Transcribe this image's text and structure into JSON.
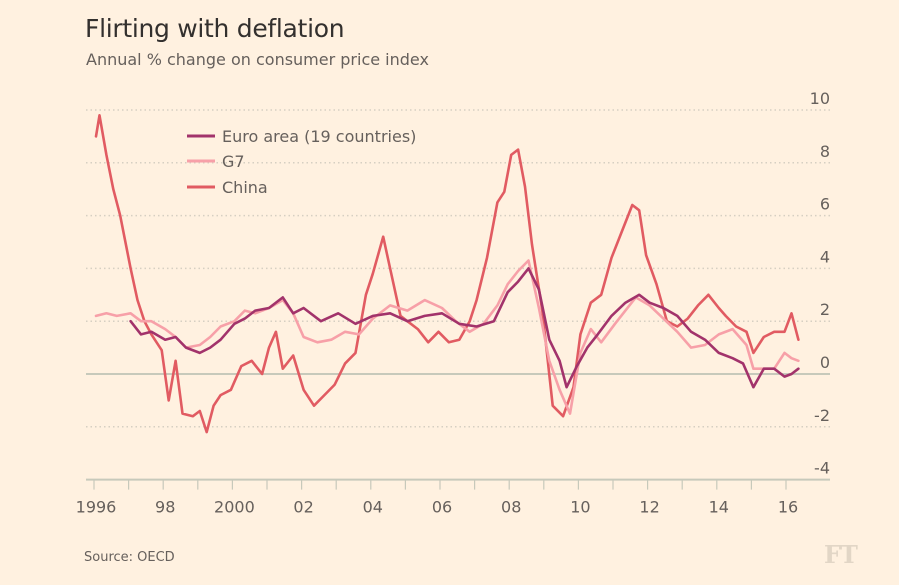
{
  "header": {
    "title": "Flirting with deflation",
    "subtitle": "Annual % change on consumer price index"
  },
  "footer": {
    "source": "Source: OECD",
    "logo": "FT"
  },
  "colors": {
    "background": "#fff1e0",
    "euro": "#a2336b",
    "g7": "#f7a0a8",
    "china": "#e15b62",
    "zero_line": "#c7c9bb",
    "grid": "#d6cfc2"
  },
  "chart_data": {
    "type": "line",
    "title": "Flirting with deflation",
    "subtitle": "Annual % change on consumer price index",
    "xlabel": "",
    "ylabel": "",
    "ylim": [
      -4,
      10
    ],
    "xlim": [
      1995.9,
      2016.4
    ],
    "y_ticks": [
      10,
      8,
      6,
      4,
      2,
      0,
      -2,
      -4
    ],
    "y_tick_labels": [
      "10",
      "8",
      "6",
      "4",
      "2",
      "0",
      "-2",
      "-4"
    ],
    "x_ticks": [
      1996,
      1998,
      2000,
      2002,
      2004,
      2006,
      2008,
      2010,
      2012,
      2014,
      2016
    ],
    "x_tick_labels": [
      "1996",
      "98",
      "2000",
      "02",
      "04",
      "06",
      "08",
      "10",
      "12",
      "14",
      "16"
    ],
    "grid": true,
    "legend": "top-left",
    "series": [
      {
        "name": "Euro area (19 countries)",
        "color_key": "euro",
        "x": [
          1997.0,
          1997.3,
          1997.6,
          1998.0,
          1998.3,
          1998.6,
          1999.0,
          1999.3,
          1999.6,
          2000.0,
          2000.3,
          2000.6,
          2001.0,
          2001.4,
          2001.7,
          2002.0,
          2002.5,
          2003.0,
          2003.5,
          2004.0,
          2004.5,
          2005.0,
          2005.5,
          2006.0,
          2006.5,
          2007.0,
          2007.5,
          2007.9,
          2008.2,
          2008.5,
          2008.8,
          2009.1,
          2009.4,
          2009.6,
          2009.9,
          2010.2,
          2010.5,
          2010.9,
          2011.3,
          2011.7,
          2012.0,
          2012.4,
          2012.8,
          2013.2,
          2013.6,
          2014.0,
          2014.4,
          2014.7,
          2015.0,
          2015.3,
          2015.6,
          2015.9,
          2016.1,
          2016.3
        ],
        "values": [
          2.0,
          1.5,
          1.6,
          1.3,
          1.4,
          1.0,
          0.8,
          1.0,
          1.3,
          1.9,
          2.1,
          2.4,
          2.5,
          2.9,
          2.3,
          2.5,
          2.0,
          2.3,
          1.9,
          2.2,
          2.3,
          2.0,
          2.2,
          2.3,
          1.9,
          1.8,
          2.0,
          3.1,
          3.5,
          4.0,
          3.2,
          1.3,
          0.5,
          -0.5,
          0.3,
          1.0,
          1.5,
          2.2,
          2.7,
          3.0,
          2.7,
          2.5,
          2.2,
          1.6,
          1.3,
          0.8,
          0.6,
          0.4,
          -0.5,
          0.2,
          0.2,
          -0.1,
          0.0,
          0.2
        ]
      },
      {
        "name": "G7",
        "color_key": "g7",
        "x": [
          1996.0,
          1996.3,
          1996.6,
          1997.0,
          1997.3,
          1997.6,
          1998.0,
          1998.3,
          1998.6,
          1999.0,
          1999.3,
          1999.6,
          2000.0,
          2000.3,
          2000.6,
          2001.0,
          2001.4,
          2001.7,
          2002.0,
          2002.4,
          2002.8,
          2003.2,
          2003.6,
          2004.0,
          2004.5,
          2005.0,
          2005.5,
          2006.0,
          2006.4,
          2006.8,
          2007.2,
          2007.6,
          2007.9,
          2008.2,
          2008.5,
          2008.8,
          2009.1,
          2009.4,
          2009.7,
          2010.0,
          2010.3,
          2010.6,
          2011.0,
          2011.3,
          2011.6,
          2012.0,
          2012.4,
          2012.8,
          2013.2,
          2013.6,
          2014.0,
          2014.4,
          2014.8,
          2015.0,
          2015.3,
          2015.6,
          2015.9,
          2016.1,
          2016.3
        ],
        "values": [
          2.2,
          2.3,
          2.2,
          2.3,
          2.0,
          2.0,
          1.7,
          1.4,
          1.0,
          1.1,
          1.4,
          1.8,
          2.0,
          2.4,
          2.3,
          2.5,
          2.8,
          2.3,
          1.4,
          1.2,
          1.3,
          1.6,
          1.5,
          2.1,
          2.6,
          2.4,
          2.8,
          2.5,
          2.0,
          1.6,
          1.9,
          2.6,
          3.4,
          3.9,
          4.3,
          2.5,
          0.5,
          -0.6,
          -1.5,
          0.8,
          1.7,
          1.2,
          1.9,
          2.4,
          2.9,
          2.6,
          2.1,
          1.6,
          1.0,
          1.1,
          1.5,
          1.7,
          1.1,
          0.2,
          0.2,
          0.2,
          0.8,
          0.6,
          0.5
        ]
      },
      {
        "name": "China",
        "color_key": "china",
        "x": [
          1996.0,
          1996.1,
          1996.3,
          1996.5,
          1996.7,
          1997.0,
          1997.2,
          1997.4,
          1997.6,
          1997.9,
          1998.1,
          1998.3,
          1998.5,
          1998.8,
          1999.0,
          1999.2,
          1999.4,
          1999.6,
          1999.9,
          2000.2,
          2000.5,
          2000.8,
          2001.0,
          2001.2,
          2001.4,
          2001.7,
          2002.0,
          2002.3,
          2002.6,
          2002.9,
          2003.2,
          2003.5,
          2003.8,
          2004.0,
          2004.3,
          2004.5,
          2004.8,
          2005.0,
          2005.3,
          2005.6,
          2005.9,
          2006.2,
          2006.5,
          2006.8,
          2007.0,
          2007.3,
          2007.6,
          2007.8,
          2008.0,
          2008.2,
          2008.4,
          2008.6,
          2008.9,
          2009.2,
          2009.5,
          2009.8,
          2010.0,
          2010.3,
          2010.6,
          2010.9,
          2011.2,
          2011.5,
          2011.7,
          2011.9,
          2012.2,
          2012.5,
          2012.8,
          2013.1,
          2013.4,
          2013.7,
          2014.0,
          2014.2,
          2014.5,
          2014.8,
          2015.0,
          2015.3,
          2015.6,
          2015.9,
          2016.1,
          2016.3
        ],
        "values": [
          9.0,
          9.8,
          8.3,
          7.0,
          6.0,
          4.0,
          2.8,
          2.0,
          1.5,
          0.9,
          -1.0,
          0.5,
          -1.5,
          -1.6,
          -1.4,
          -2.2,
          -1.2,
          -0.8,
          -0.6,
          0.3,
          0.5,
          0.0,
          1.0,
          1.6,
          0.2,
          0.7,
          -0.6,
          -1.2,
          -0.8,
          -0.4,
          0.4,
          0.8,
          3.0,
          3.8,
          5.2,
          4.0,
          2.2,
          2.0,
          1.7,
          1.2,
          1.6,
          1.2,
          1.3,
          2.0,
          2.8,
          4.4,
          6.5,
          6.9,
          8.3,
          8.5,
          7.1,
          4.9,
          2.4,
          -1.2,
          -1.6,
          -0.5,
          1.5,
          2.7,
          3.0,
          4.4,
          5.4,
          6.4,
          6.2,
          4.5,
          3.4,
          2.0,
          1.8,
          2.1,
          2.6,
          3.0,
          2.5,
          2.2,
          1.8,
          1.6,
          0.8,
          1.4,
          1.6,
          1.6,
          2.3,
          1.3
        ]
      }
    ]
  }
}
